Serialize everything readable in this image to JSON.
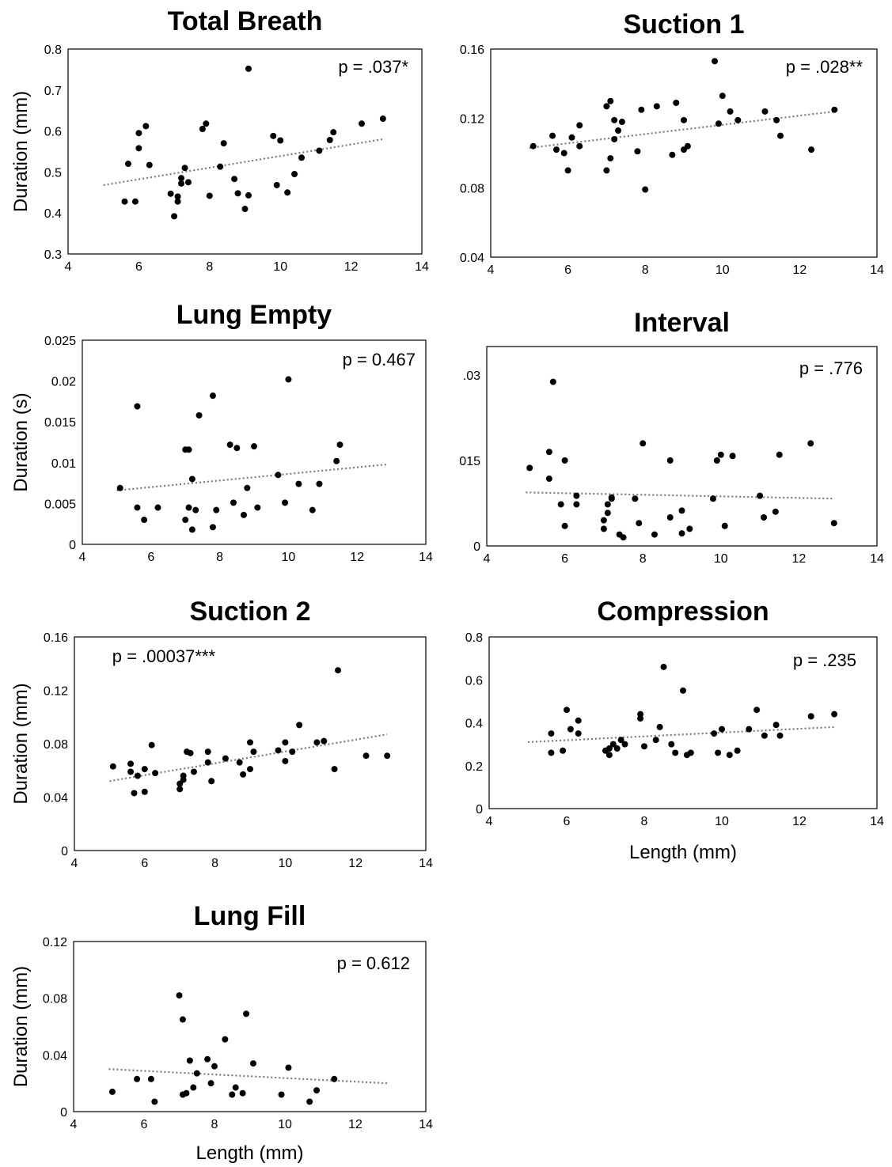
{
  "chart_data": [
    {
      "type": "scatter",
      "title": "Total Breath",
      "ylabel": "Duration (mm)",
      "xlabel": "",
      "annotation": "p = .037*",
      "xlim": [
        4,
        14
      ],
      "ylim": [
        0.3,
        0.8
      ],
      "xticks": [
        "4",
        "6",
        "8",
        "10",
        "12",
        "14"
      ],
      "yticks": [
        "0.3",
        "0.4",
        "0.5",
        "0.6",
        "0.7",
        "0.8"
      ],
      "trendline": [
        [
          5.0,
          0.468
        ],
        [
          12.9,
          0.58
        ]
      ],
      "points": [
        [
          5.6,
          0.428
        ],
        [
          5.7,
          0.52
        ],
        [
          5.9,
          0.428
        ],
        [
          6.0,
          0.595
        ],
        [
          6.0,
          0.558
        ],
        [
          6.2,
          0.612
        ],
        [
          6.3,
          0.517
        ],
        [
          6.9,
          0.447
        ],
        [
          7.0,
          0.392
        ],
        [
          7.1,
          0.428
        ],
        [
          7.1,
          0.44
        ],
        [
          7.2,
          0.485
        ],
        [
          7.2,
          0.472
        ],
        [
          7.3,
          0.51
        ],
        [
          7.4,
          0.475
        ],
        [
          7.8,
          0.605
        ],
        [
          7.9,
          0.618
        ],
        [
          8.0,
          0.442
        ],
        [
          8.3,
          0.513
        ],
        [
          8.4,
          0.57
        ],
        [
          8.7,
          0.483
        ],
        [
          8.8,
          0.448
        ],
        [
          9.0,
          0.41
        ],
        [
          9.1,
          0.752
        ],
        [
          9.1,
          0.443
        ],
        [
          9.8,
          0.588
        ],
        [
          9.9,
          0.468
        ],
        [
          10.0,
          0.577
        ],
        [
          10.2,
          0.45
        ],
        [
          10.4,
          0.495
        ],
        [
          10.6,
          0.535
        ],
        [
          11.1,
          0.552
        ],
        [
          11.4,
          0.578
        ],
        [
          11.5,
          0.597
        ],
        [
          12.3,
          0.618
        ],
        [
          12.9,
          0.63
        ]
      ]
    },
    {
      "type": "scatter",
      "title": "Suction 1",
      "ylabel": "",
      "xlabel": "",
      "annotation": "p = .028**",
      "xlim": [
        4,
        14
      ],
      "ylim": [
        0.04,
        0.16
      ],
      "xticks": [
        "4",
        "6",
        "8",
        "10",
        "12",
        "14"
      ],
      "yticks": [
        "0.04",
        "0.08",
        "0.12",
        "0.16"
      ],
      "trendline": [
        [
          5.0,
          0.103
        ],
        [
          12.9,
          0.124
        ]
      ],
      "points": [
        [
          5.1,
          0.104
        ],
        [
          5.6,
          0.11
        ],
        [
          5.7,
          0.102
        ],
        [
          5.9,
          0.1
        ],
        [
          6.0,
          0.09
        ],
        [
          6.1,
          0.109
        ],
        [
          6.3,
          0.104
        ],
        [
          6.3,
          0.116
        ],
        [
          7.0,
          0.127
        ],
        [
          7.0,
          0.09
        ],
        [
          7.1,
          0.13
        ],
        [
          7.1,
          0.097
        ],
        [
          7.2,
          0.119
        ],
        [
          7.2,
          0.108
        ],
        [
          7.3,
          0.113
        ],
        [
          7.4,
          0.118
        ],
        [
          7.8,
          0.101
        ],
        [
          7.9,
          0.125
        ],
        [
          8.0,
          0.079
        ],
        [
          8.3,
          0.127
        ],
        [
          8.7,
          0.099
        ],
        [
          8.8,
          0.129
        ],
        [
          9.0,
          0.119
        ],
        [
          9.0,
          0.102
        ],
        [
          9.1,
          0.104
        ],
        [
          9.8,
          0.153
        ],
        [
          9.9,
          0.117
        ],
        [
          10.0,
          0.133
        ],
        [
          10.2,
          0.124
        ],
        [
          10.4,
          0.119
        ],
        [
          11.1,
          0.124
        ],
        [
          11.4,
          0.119
        ],
        [
          11.5,
          0.11
        ],
        [
          12.3,
          0.102
        ],
        [
          12.9,
          0.125
        ]
      ]
    },
    {
      "type": "scatter",
      "title": "Lung Empty",
      "ylabel": "Duration (s)",
      "xlabel": "",
      "annotation": "p = 0.467",
      "xlim": [
        4,
        14
      ],
      "ylim": [
        0,
        0.025
      ],
      "xticks": [
        "4",
        "6",
        "8",
        "10",
        "12",
        "14"
      ],
      "yticks": [
        "0",
        "0.005",
        "0.01",
        "0.015",
        "0.02",
        "0.025"
      ],
      "trendline": [
        [
          5.0,
          0.0066
        ],
        [
          12.9,
          0.0098
        ]
      ],
      "points": [
        [
          5.1,
          0.0069
        ],
        [
          5.6,
          0.0169
        ],
        [
          5.6,
          0.0045
        ],
        [
          5.8,
          0.003
        ],
        [
          6.2,
          0.0045
        ],
        [
          7.0,
          0.0116
        ],
        [
          7.0,
          0.003
        ],
        [
          7.1,
          0.0116
        ],
        [
          7.1,
          0.0045
        ],
        [
          7.2,
          0.0018
        ],
        [
          7.2,
          0.008
        ],
        [
          7.3,
          0.0042
        ],
        [
          7.4,
          0.0158
        ],
        [
          7.8,
          0.0182
        ],
        [
          7.8,
          0.0021
        ],
        [
          7.9,
          0.0042
        ],
        [
          8.3,
          0.0122
        ],
        [
          8.4,
          0.0051
        ],
        [
          8.5,
          0.0118
        ],
        [
          8.7,
          0.0036
        ],
        [
          8.8,
          0.0069
        ],
        [
          9.0,
          0.012
        ],
        [
          9.1,
          0.0045
        ],
        [
          9.7,
          0.0085
        ],
        [
          9.9,
          0.0051
        ],
        [
          10.0,
          0.0202
        ],
        [
          10.3,
          0.0074
        ],
        [
          10.7,
          0.0042
        ],
        [
          10.9,
          0.0074
        ],
        [
          11.4,
          0.0102
        ],
        [
          11.5,
          0.0122
        ]
      ]
    },
    {
      "type": "scatter",
      "title": "Interval",
      "ylabel": "",
      "xlabel": "",
      "annotation": "p = .776",
      "xlim": [
        4,
        14
      ],
      "ylim": [
        0,
        0.035
      ],
      "xticks": [
        "4",
        "6",
        "8",
        "10",
        "12",
        "14"
      ],
      "yticks": [
        ".03",
        "015",
        "0"
      ],
      "ytick_values": [
        0.03,
        0.015,
        0
      ],
      "trendline": [
        [
          5.0,
          0.0094
        ],
        [
          12.9,
          0.0083
        ]
      ],
      "points": [
        [
          5.1,
          0.0137
        ],
        [
          5.6,
          0.0118
        ],
        [
          5.6,
          0.0165
        ],
        [
          5.7,
          0.0288
        ],
        [
          5.9,
          0.0073
        ],
        [
          6.0,
          0.0035
        ],
        [
          6.0,
          0.015
        ],
        [
          6.3,
          0.0088
        ],
        [
          6.3,
          0.0073
        ],
        [
          7.0,
          0.0045
        ],
        [
          7.0,
          0.003
        ],
        [
          7.1,
          0.0073
        ],
        [
          7.1,
          0.0058
        ],
        [
          7.2,
          0.0083
        ],
        [
          7.2,
          0.0085
        ],
        [
          7.4,
          0.002
        ],
        [
          7.5,
          0.0015
        ],
        [
          7.8,
          0.0083
        ],
        [
          7.9,
          0.004
        ],
        [
          8.0,
          0.018
        ],
        [
          8.3,
          0.002
        ],
        [
          8.7,
          0.015
        ],
        [
          8.7,
          0.005
        ],
        [
          9.0,
          0.0062
        ],
        [
          9.0,
          0.0022
        ],
        [
          9.2,
          0.003
        ],
        [
          9.8,
          0.0083
        ],
        [
          9.9,
          0.015
        ],
        [
          10.0,
          0.016
        ],
        [
          10.1,
          0.0035
        ],
        [
          10.3,
          0.0158
        ],
        [
          11.0,
          0.0088
        ],
        [
          11.1,
          0.005
        ],
        [
          11.4,
          0.006
        ],
        [
          11.5,
          0.016
        ],
        [
          12.3,
          0.018
        ],
        [
          12.9,
          0.004
        ]
      ]
    },
    {
      "type": "scatter",
      "title": "Suction 2",
      "ylabel": "Duration (mm)",
      "xlabel": "",
      "annotation": "p = .00037***",
      "xlim": [
        4,
        14
      ],
      "ylim": [
        0,
        0.16
      ],
      "xticks": [
        "4",
        "6",
        "8",
        "10",
        "12",
        "14"
      ],
      "yticks": [
        "0",
        "0.04",
        "0.08",
        "0.12",
        "0.16"
      ],
      "trendline": [
        [
          5.0,
          0.052
        ],
        [
          12.9,
          0.087
        ]
      ],
      "points": [
        [
          5.1,
          0.063
        ],
        [
          5.6,
          0.065
        ],
        [
          5.6,
          0.059
        ],
        [
          5.7,
          0.043
        ],
        [
          5.8,
          0.056
        ],
        [
          6.0,
          0.061
        ],
        [
          6.0,
          0.044
        ],
        [
          6.2,
          0.079
        ],
        [
          6.3,
          0.058
        ],
        [
          7.0,
          0.046
        ],
        [
          7.0,
          0.05
        ],
        [
          7.1,
          0.056
        ],
        [
          7.1,
          0.053
        ],
        [
          7.2,
          0.074
        ],
        [
          7.3,
          0.073
        ],
        [
          7.4,
          0.059
        ],
        [
          7.8,
          0.066
        ],
        [
          7.8,
          0.074
        ],
        [
          7.9,
          0.052
        ],
        [
          8.3,
          0.069
        ],
        [
          8.7,
          0.066
        ],
        [
          8.8,
          0.057
        ],
        [
          9.0,
          0.081
        ],
        [
          9.0,
          0.061
        ],
        [
          9.1,
          0.074
        ],
        [
          9.8,
          0.075
        ],
        [
          10.0,
          0.081
        ],
        [
          10.0,
          0.067
        ],
        [
          10.2,
          0.074
        ],
        [
          10.4,
          0.094
        ],
        [
          10.9,
          0.081
        ],
        [
          11.1,
          0.082
        ],
        [
          11.4,
          0.061
        ],
        [
          11.5,
          0.135
        ],
        [
          12.3,
          0.071
        ],
        [
          12.9,
          0.071
        ]
      ]
    },
    {
      "type": "scatter",
      "title": "Compression",
      "ylabel": "",
      "xlabel": "Length (mm)",
      "annotation": "p = .235",
      "xlim": [
        4,
        14
      ],
      "ylim": [
        0,
        0.8
      ],
      "xticks": [
        "4",
        "6",
        "8",
        "10",
        "12",
        "14"
      ],
      "yticks": [
        "0",
        "0.2",
        "0.4",
        "0.6",
        "0.8"
      ],
      "trendline": [
        [
          5.0,
          0.31
        ],
        [
          12.9,
          0.38
        ]
      ],
      "points": [
        [
          5.6,
          0.35
        ],
        [
          5.6,
          0.26
        ],
        [
          5.9,
          0.27
        ],
        [
          6.0,
          0.46
        ],
        [
          6.1,
          0.37
        ],
        [
          6.3,
          0.41
        ],
        [
          6.3,
          0.35
        ],
        [
          7.0,
          0.27
        ],
        [
          7.1,
          0.25
        ],
        [
          7.1,
          0.28
        ],
        [
          7.2,
          0.3
        ],
        [
          7.3,
          0.28
        ],
        [
          7.4,
          0.32
        ],
        [
          7.5,
          0.3
        ],
        [
          7.9,
          0.44
        ],
        [
          7.9,
          0.42
        ],
        [
          8.0,
          0.29
        ],
        [
          8.3,
          0.32
        ],
        [
          8.4,
          0.38
        ],
        [
          8.5,
          0.66
        ],
        [
          8.7,
          0.3
        ],
        [
          8.8,
          0.26
        ],
        [
          9.0,
          0.55
        ],
        [
          9.1,
          0.25
        ],
        [
          9.2,
          0.26
        ],
        [
          9.8,
          0.35
        ],
        [
          9.9,
          0.26
        ],
        [
          10.0,
          0.37
        ],
        [
          10.2,
          0.25
        ],
        [
          10.4,
          0.27
        ],
        [
          10.7,
          0.37
        ],
        [
          10.9,
          0.46
        ],
        [
          11.1,
          0.34
        ],
        [
          11.4,
          0.39
        ],
        [
          11.5,
          0.34
        ],
        [
          12.3,
          0.43
        ],
        [
          12.9,
          0.44
        ]
      ]
    },
    {
      "type": "scatter",
      "title": "Lung Fill",
      "ylabel": "Duration (mm)",
      "xlabel": "Length (mm)",
      "annotation": "p = 0.612",
      "xlim": [
        4,
        14
      ],
      "ylim": [
        0,
        0.12
      ],
      "xticks": [
        "4",
        "6",
        "8",
        "10",
        "12",
        "14"
      ],
      "yticks": [
        "0",
        "0.04",
        "0.08",
        "0.12"
      ],
      "trendline": [
        [
          5.0,
          0.03
        ],
        [
          12.9,
          0.02
        ]
      ],
      "points": [
        [
          5.1,
          0.014
        ],
        [
          5.8,
          0.023
        ],
        [
          6.2,
          0.023
        ],
        [
          6.3,
          0.007
        ],
        [
          7.0,
          0.082
        ],
        [
          7.1,
          0.065
        ],
        [
          7.1,
          0.012
        ],
        [
          7.2,
          0.013
        ],
        [
          7.3,
          0.036
        ],
        [
          7.4,
          0.017
        ],
        [
          7.5,
          0.027
        ],
        [
          7.8,
          0.037
        ],
        [
          7.9,
          0.02
        ],
        [
          8.0,
          0.032
        ],
        [
          8.3,
          0.051
        ],
        [
          8.5,
          0.012
        ],
        [
          8.6,
          0.017
        ],
        [
          8.8,
          0.013
        ],
        [
          8.9,
          0.069
        ],
        [
          9.1,
          0.034
        ],
        [
          9.9,
          0.012
        ],
        [
          10.1,
          0.031
        ],
        [
          10.7,
          0.007
        ],
        [
          10.9,
          0.015
        ],
        [
          11.4,
          0.023
        ]
      ]
    }
  ],
  "panels_layout_note": ""
}
